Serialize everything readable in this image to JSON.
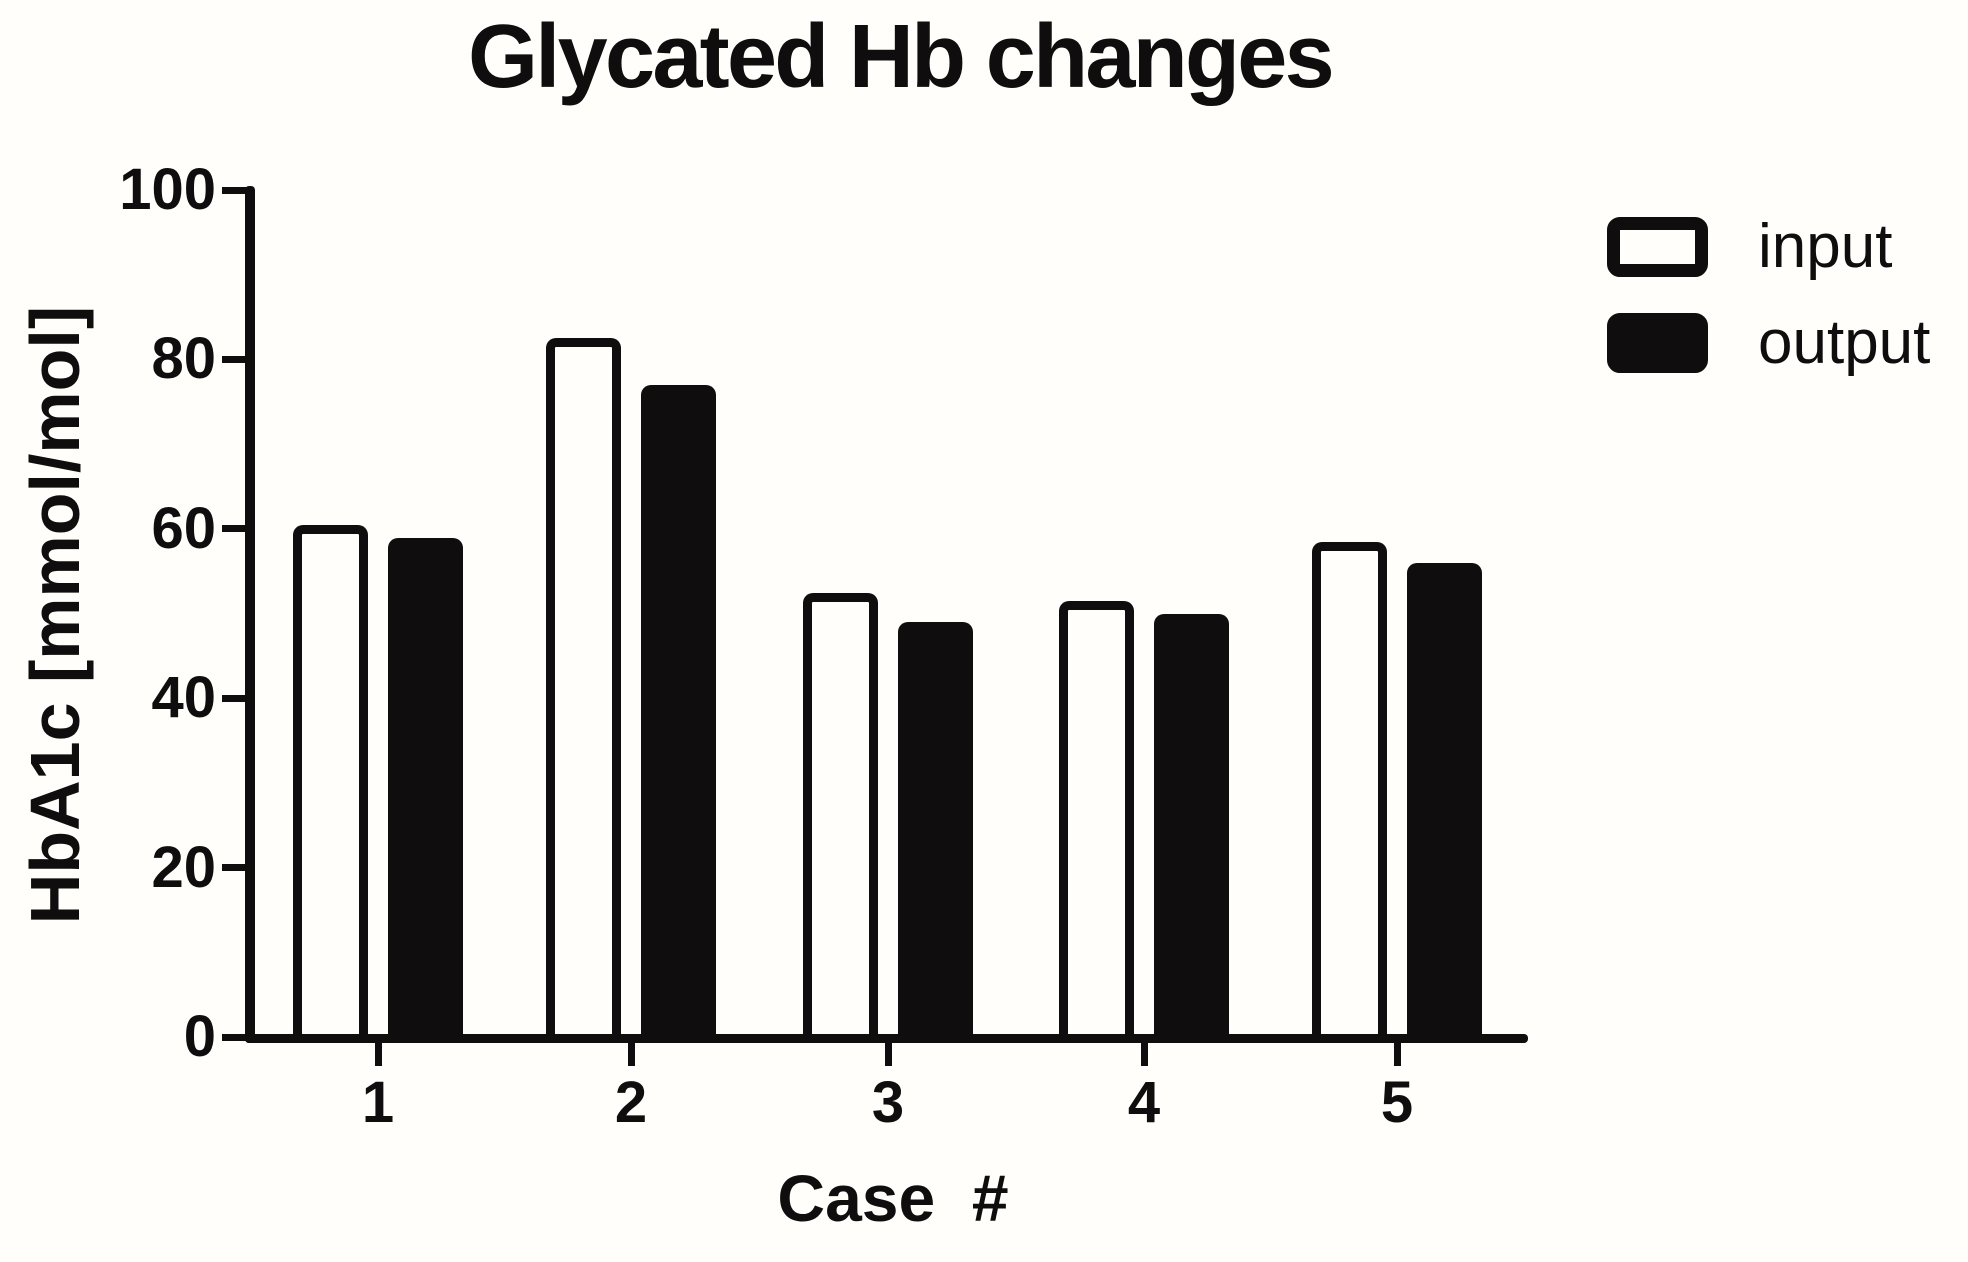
{
  "title": "Glycated Hb changes",
  "y_axis": {
    "label": "HbA1c [mmol/mol]"
  },
  "x_axis": {
    "label": "Case  #"
  },
  "legend": {
    "items": [
      {
        "label": "input",
        "swatch": "open-white"
      },
      {
        "label": "output",
        "swatch": "filled-black"
      }
    ]
  },
  "colors": {
    "ink": "#0f0d0d",
    "paper": "#fffefa",
    "input_fill": "#fffefa",
    "output_fill": "#0f0d0d"
  },
  "chart_data": {
    "type": "bar",
    "title": "Glycated Hb changes",
    "categories": [
      "1",
      "2",
      "3",
      "4",
      "5"
    ],
    "series": [
      {
        "name": "input",
        "style": "open",
        "values": [
          60,
          82,
          52,
          51,
          58
        ]
      },
      {
        "name": "output",
        "style": "filled",
        "values": [
          58.5,
          76.5,
          48.5,
          49.5,
          55.5
        ]
      }
    ],
    "xlabel": "Case  #",
    "ylabel": "HbA1c [mmol/mol]",
    "ylim": [
      0,
      100
    ],
    "yticks": [
      0,
      20,
      40,
      60,
      80,
      100
    ],
    "grid": false,
    "legend_position": "top-right"
  }
}
